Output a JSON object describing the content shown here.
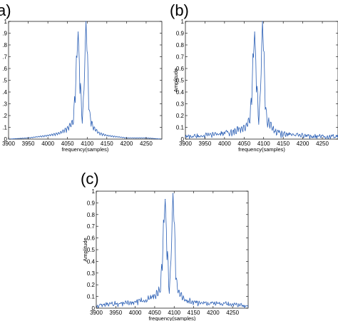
{
  "chart_data": [
    {
      "panel": "a)",
      "type": "line",
      "xlabel": "frequency(samples)",
      "ylabel": "",
      "xlim": [
        3900,
        4290
      ],
      "ylim": [
        0,
        1
      ],
      "xticks": [
        "3900",
        "3950",
        "4000",
        "4050",
        "4100",
        "4150",
        "4200",
        "4250"
      ],
      "yticks": [
        "0",
        ".1",
        ".2",
        ".3",
        ".4",
        ".5",
        ".6",
        ".7",
        ".8",
        ".9",
        "1"
      ],
      "peaks": [
        {
          "x": 4077,
          "y": 0.91
        },
        {
          "x": 4097,
          "y": 1.0
        }
      ],
      "series": [
        {
          "color": "#2b5fb5",
          "x": [
            3900,
            3950,
            4000,
            4030,
            4050,
            4065,
            4072,
            4077,
            4082,
            4087,
            4090,
            4093,
            4097,
            4101,
            4106,
            4115,
            4130,
            4150,
            4200,
            4250,
            4290
          ],
          "y": [
            0.0,
            0.01,
            0.03,
            0.05,
            0.09,
            0.15,
            0.55,
            0.91,
            0.5,
            0.15,
            0.25,
            0.6,
            1.0,
            0.6,
            0.2,
            0.1,
            0.05,
            0.03,
            0.01,
            0.01,
            0.0
          ]
        }
      ]
    },
    {
      "panel": "(b)",
      "type": "line",
      "xlabel": "frequency(samples)",
      "ylabel": "Amplitude",
      "xlim": [
        3900,
        4290
      ],
      "ylim": [
        0,
        1
      ],
      "xticks": [
        "3900",
        "3950",
        "4000",
        "4050",
        "4100",
        "4150",
        "4200",
        "4250"
      ],
      "yticks": [
        "0",
        "0.1",
        "0.2",
        "0.3",
        "0.4",
        "0.5",
        "0.6",
        "0.7",
        "0.8",
        "0.9",
        "1"
      ],
      "peaks": [
        {
          "x": 4077,
          "y": 0.91
        },
        {
          "x": 4097,
          "y": 1.0
        }
      ],
      "series": [
        {
          "color": "#2b5fb5",
          "x": [
            3900,
            3950,
            4000,
            4030,
            4050,
            4065,
            4072,
            4077,
            4082,
            4087,
            4090,
            4093,
            4097,
            4101,
            4106,
            4115,
            4130,
            4150,
            4200,
            4250,
            4290
          ],
          "y": [
            0.02,
            0.03,
            0.05,
            0.07,
            0.1,
            0.15,
            0.55,
            0.91,
            0.5,
            0.15,
            0.25,
            0.6,
            1.0,
            0.6,
            0.2,
            0.12,
            0.06,
            0.04,
            0.03,
            0.02,
            0.02
          ]
        }
      ]
    },
    {
      "panel": "(c)",
      "type": "line",
      "xlabel": "frequency(samples)",
      "ylabel": "Amplitude",
      "xlim": [
        3900,
        4290
      ],
      "ylim": [
        0,
        1
      ],
      "xticks": [
        "3900",
        "3950",
        "4000",
        "4050",
        "4100",
        "4150",
        "4200",
        "4250"
      ],
      "yticks": [
        "0",
        "0.1",
        "0.2",
        "0.3",
        "0.4",
        "0.5",
        "0.6",
        "0.7",
        "0.8",
        "0.9",
        "1"
      ],
      "peaks": [
        {
          "x": 4077,
          "y": 0.93
        },
        {
          "x": 4097,
          "y": 0.98
        }
      ],
      "series": [
        {
          "color": "#2b5fb5",
          "x": [
            3900,
            3950,
            4000,
            4030,
            4050,
            4065,
            4072,
            4077,
            4082,
            4087,
            4090,
            4093,
            4097,
            4101,
            4106,
            4115,
            4130,
            4150,
            4200,
            4250,
            4290
          ],
          "y": [
            0.02,
            0.04,
            0.05,
            0.07,
            0.1,
            0.16,
            0.6,
            0.93,
            0.5,
            0.15,
            0.25,
            0.6,
            0.98,
            0.6,
            0.2,
            0.12,
            0.07,
            0.05,
            0.04,
            0.03,
            0.02
          ]
        }
      ]
    }
  ]
}
